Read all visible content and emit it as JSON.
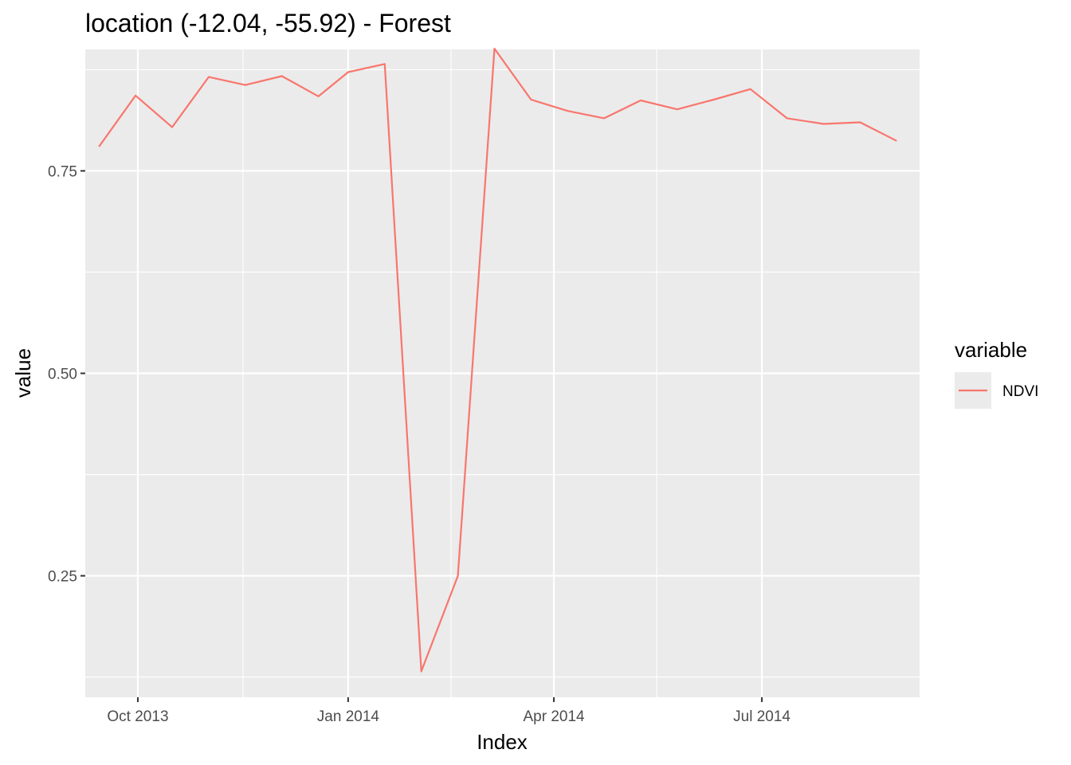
{
  "chart_data": {
    "type": "line",
    "title": "location (-12.04, -55.92) - Forest",
    "xlabel": "Index",
    "ylabel": "value",
    "x_type": "date",
    "xlim": [
      "2013-09-08",
      "2014-09-08"
    ],
    "ylim": [
      0.1,
      0.9
    ],
    "x_ticks": [
      {
        "date": "2013-10-01",
        "label": "Oct 2013"
      },
      {
        "date": "2014-01-01",
        "label": "Jan 2014"
      },
      {
        "date": "2014-04-01",
        "label": "Apr 2014"
      },
      {
        "date": "2014-07-01",
        "label": "Jul 2014"
      }
    ],
    "x_minor_ticks": [
      "2013-11-16",
      "2014-02-15",
      "2014-05-16"
    ],
    "y_ticks": [
      {
        "value": 0.25,
        "label": "0.25"
      },
      {
        "value": 0.5,
        "label": "0.50"
      },
      {
        "value": 0.75,
        "label": "0.75"
      }
    ],
    "y_minor_ticks": [
      0.125,
      0.375,
      0.625,
      0.875
    ],
    "grid": true,
    "legend": {
      "title": "variable",
      "position": "right"
    },
    "series": [
      {
        "name": "NDVI",
        "color": "#F8766D",
        "x": [
          "2013-09-14",
          "2013-09-30",
          "2013-10-16",
          "2013-11-01",
          "2013-11-17",
          "2013-12-03",
          "2013-12-19",
          "2014-01-01",
          "2014-01-17",
          "2014-02-02",
          "2014-02-18",
          "2014-03-06",
          "2014-03-22",
          "2014-04-07",
          "2014-04-23",
          "2014-05-09",
          "2014-05-25",
          "2014-06-10",
          "2014-06-26",
          "2014-07-12",
          "2014-07-28",
          "2014-08-13",
          "2014-08-29"
        ],
        "values": [
          0.78,
          0.843,
          0.804,
          0.866,
          0.856,
          0.867,
          0.842,
          0.872,
          0.882,
          0.132,
          0.25,
          0.901,
          0.838,
          0.824,
          0.815,
          0.837,
          0.826,
          0.838,
          0.851,
          0.815,
          0.808,
          0.81,
          0.787
        ]
      }
    ]
  }
}
